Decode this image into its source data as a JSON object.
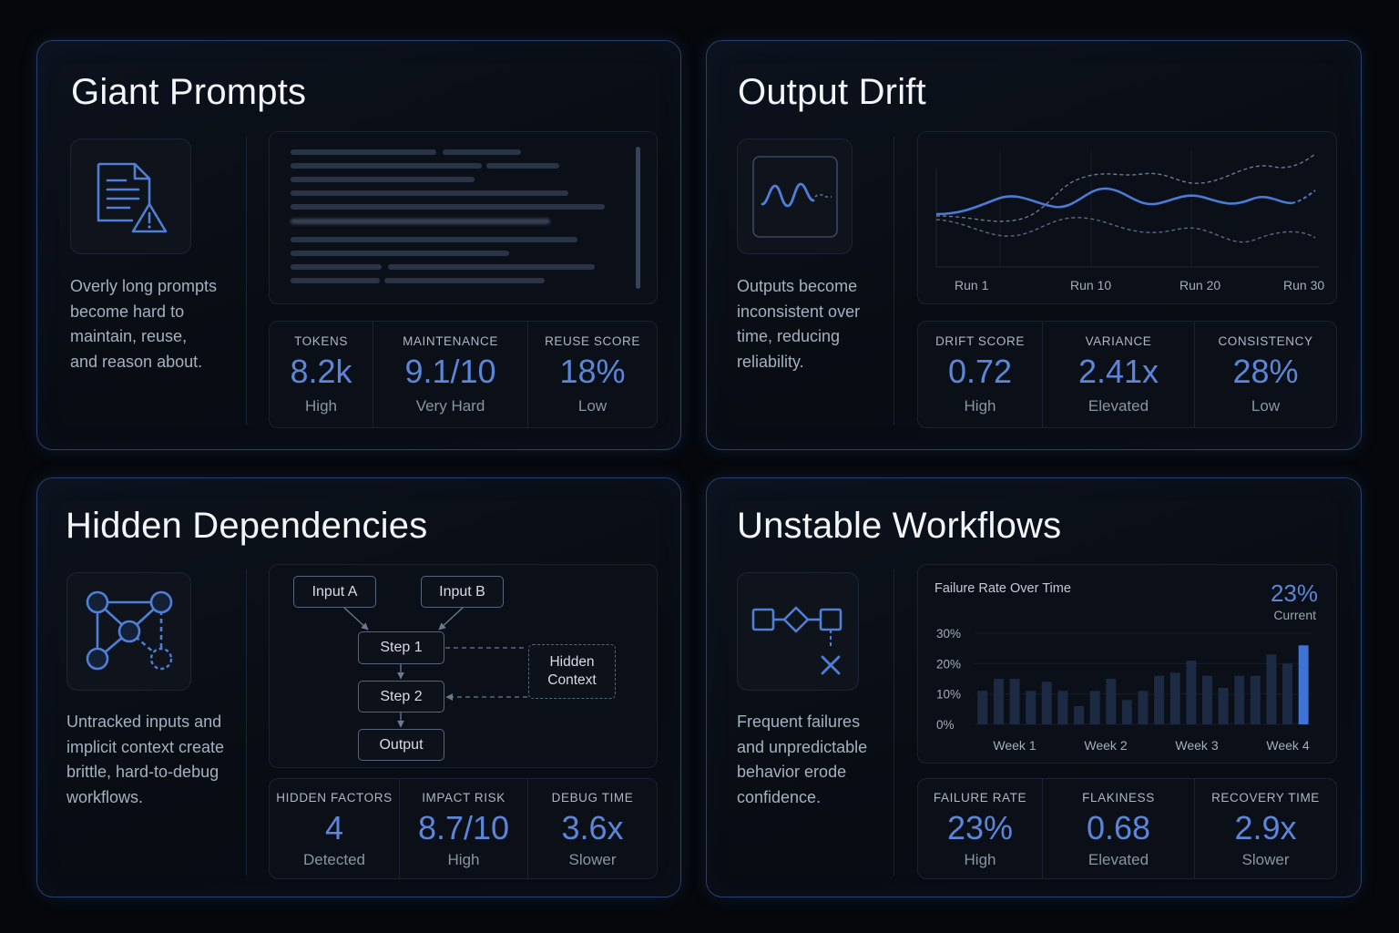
{
  "cards": {
    "giant": {
      "title": "Giant Prompts",
      "icon": "document-warning-icon",
      "description": "Overly long prompts\nbecome hard to\nmaintain, reuse,\nand reason about.",
      "metrics": [
        {
          "label": "TOKENS",
          "value": "8.2k",
          "sub": "High"
        },
        {
          "label": "MAINTENANCE",
          "value": "9.1/10",
          "sub": "Very Hard"
        },
        {
          "label": "REUSE SCORE",
          "value": "18%",
          "sub": "Low"
        }
      ]
    },
    "drift": {
      "title": "Output Drift",
      "icon": "waveform-icon",
      "description": "Outputs become\ninconsistent over\ntime, reducing\nreliability.",
      "chart_labels": [
        "Run 1",
        "Run 10",
        "Run 20",
        "Run 30"
      ],
      "metrics": [
        {
          "label": "DRIFT SCORE",
          "value": "0.72",
          "sub": "High"
        },
        {
          "label": "VARIANCE",
          "value": "2.41x",
          "sub": "Elevated"
        },
        {
          "label": "CONSISTENCY",
          "value": "28%",
          "sub": "Low"
        }
      ]
    },
    "hidden": {
      "title": "Hidden Dependencies",
      "icon": "network-graph-icon",
      "description": "Untracked inputs and\nimplicit context create\nbrittle, hard-to-debug\nworkflows.",
      "diagram": {
        "input_a": "Input A",
        "input_b": "Input B",
        "step1": "Step 1",
        "step2": "Step 2",
        "output": "Output",
        "hidden_line1": "Hidden",
        "hidden_line2": "Context"
      },
      "metrics": [
        {
          "label": "HIDDEN FACTORS",
          "value": "4",
          "sub": "Detected"
        },
        {
          "label": "IMPACT RISK",
          "value": "8.7/10",
          "sub": "High"
        },
        {
          "label": "DEBUG TIME",
          "value": "3.6x",
          "sub": "Slower"
        }
      ]
    },
    "unstable": {
      "title": "Unstable Workflows",
      "icon": "broken-workflow-icon",
      "description": "Frequent failures\nand unpredictable\nbehavior erode\nconfidence.",
      "metrics": [
        {
          "label": "FAILURE RATE",
          "value": "23%",
          "sub": "High"
        },
        {
          "label": "FLAKINESS",
          "value": "0.68",
          "sub": "Elevated"
        },
        {
          "label": "RECOVERY TIME",
          "value": "2.9x",
          "sub": "Slower"
        }
      ]
    }
  },
  "chart_data": {
    "type": "bar",
    "title": "Failure Rate Over Time",
    "current_value": "23%",
    "current_label": "Current",
    "y_ticks": [
      "30%",
      "20%",
      "10%",
      "0%"
    ],
    "ylim": [
      0,
      30
    ],
    "x_labels": [
      "Week 1",
      "Week 2",
      "Week 3",
      "Week 4"
    ],
    "values": [
      11,
      15,
      15,
      11,
      14,
      11,
      6,
      11,
      15,
      8,
      11,
      16,
      17,
      21,
      16,
      12,
      16,
      16,
      23,
      20,
      26
    ],
    "highlight_color": "#3f73d6",
    "bar_color": "#1c2a44"
  },
  "colors": {
    "accent": "#5b86d9",
    "border": "#27406e"
  }
}
